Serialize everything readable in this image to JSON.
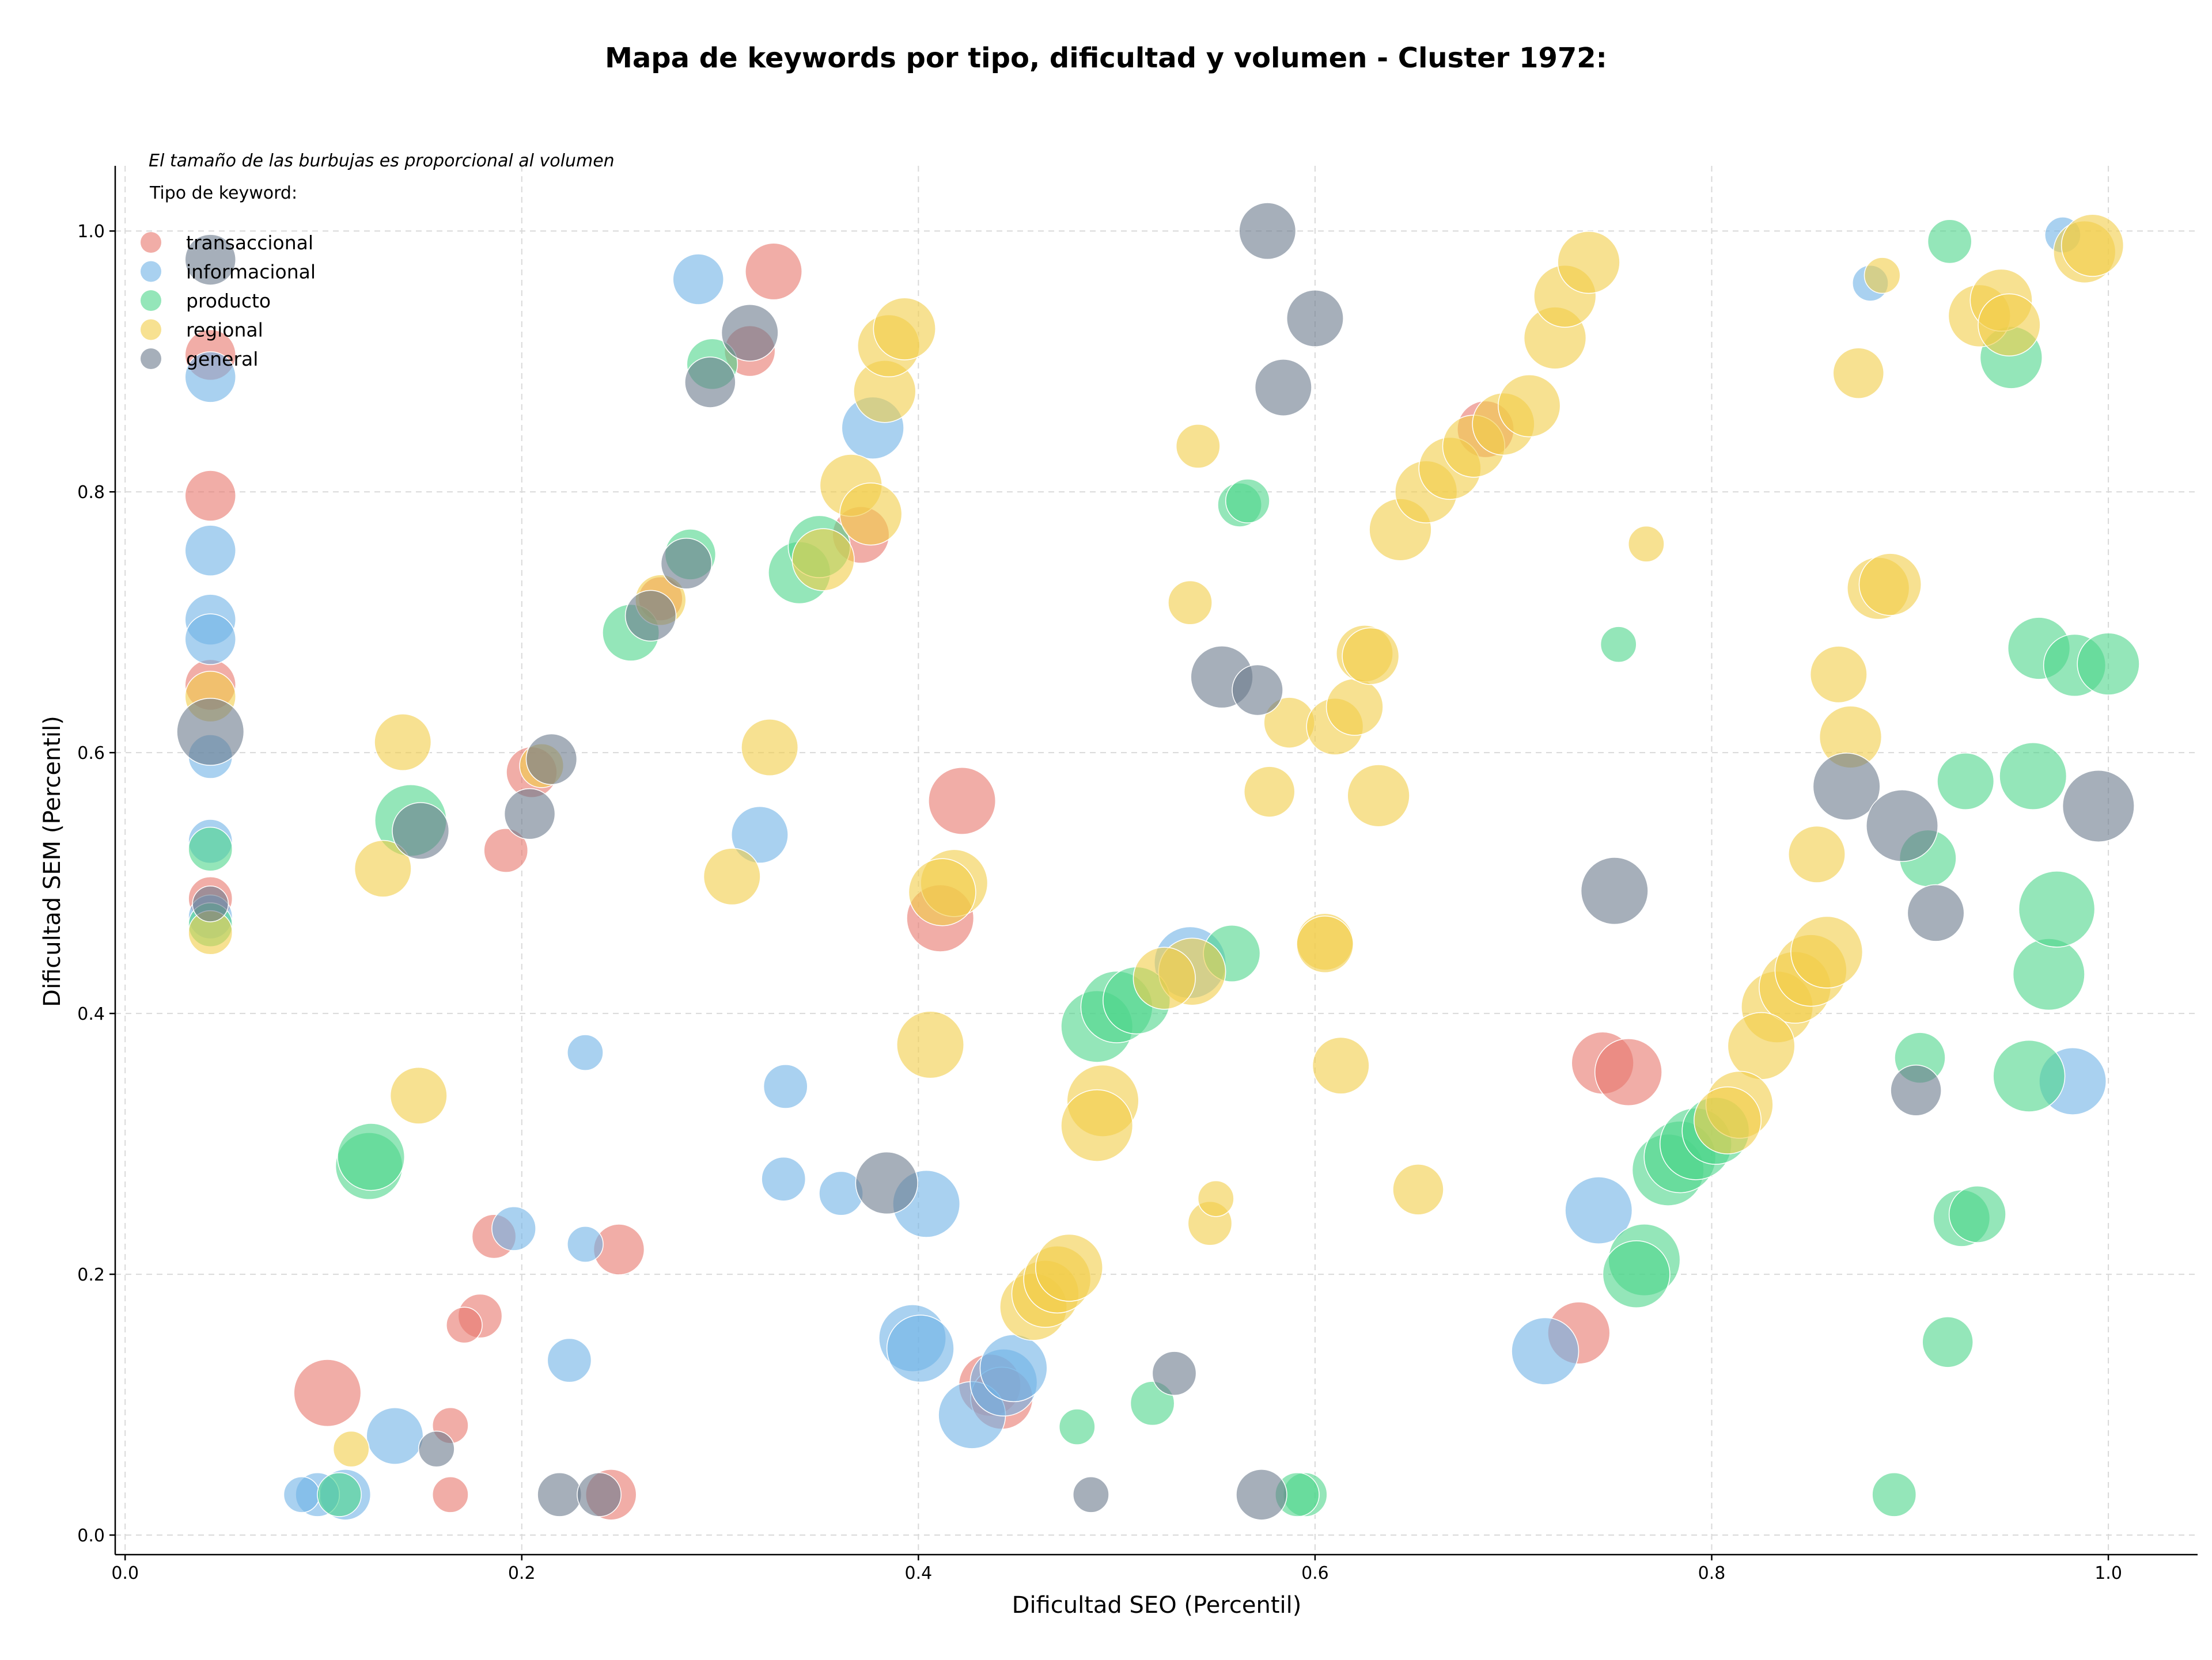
{
  "chart_data": {
    "type": "scatter",
    "title": "Mapa de keywords por tipo, dificultad y volumen - Cluster 1972:",
    "xlabel": "Dificultad SEO (Percentil)",
    "ylabel": "Dificultad SEM (Percentil)",
    "xlim": [
      -0.005,
      1.045
    ],
    "ylim": [
      -0.015,
      1.05
    ],
    "xticks": [
      "0.0",
      "0.2",
      "0.4",
      "0.6",
      "0.8",
      "1.0"
    ],
    "yticks": [
      "0.0",
      "0.2",
      "0.4",
      "0.6",
      "0.8",
      "1.0"
    ],
    "grid": true,
    "size_note": "El tamaño de las burbujas es proporcional al volumen",
    "legend_title": "Tipo de keyword:",
    "legend_position": "top-left",
    "colors": {
      "transaccional": "#e8766d",
      "informacional": "#6fb3e6",
      "producto": "#4cd68a",
      "regional": "#f2cd48",
      "general": "#6b7a8c"
    },
    "series": [
      {
        "name": "transaccional",
        "points": [
          [
            0.043,
            0.905,
            4
          ],
          [
            0.043,
            0.797,
            4
          ],
          [
            0.043,
            0.652,
            4
          ],
          [
            0.043,
            0.488,
            3
          ],
          [
            0.315,
            0.908,
            4
          ],
          [
            0.327,
            0.969,
            5
          ],
          [
            0.205,
            0.585,
            4
          ],
          [
            0.192,
            0.525,
            3
          ],
          [
            0.422,
            0.563,
            7
          ],
          [
            0.411,
            0.473,
            7
          ],
          [
            0.102,
            0.109,
            7
          ],
          [
            0.186,
            0.229,
            3
          ],
          [
            0.179,
            0.168,
            3
          ],
          [
            0.171,
            0.161,
            2
          ],
          [
            0.164,
            0.084,
            2
          ],
          [
            0.164,
            0.031,
            2
          ],
          [
            0.249,
            0.219,
            4
          ],
          [
            0.245,
            0.031,
            4
          ],
          [
            0.436,
            0.115,
            6
          ],
          [
            0.442,
            0.105,
            6
          ],
          [
            0.745,
            0.362,
            6
          ],
          [
            0.758,
            0.355,
            7
          ],
          [
            0.733,
            0.155,
            6
          ],
          [
            0.371,
            0.767,
            5
          ],
          [
            0.27,
            0.718,
            3
          ],
          [
            0.686,
            0.848,
            5
          ]
        ]
      },
      {
        "name": "informacional",
        "points": [
          [
            0.043,
            0.888,
            4
          ],
          [
            0.043,
            0.755,
            4
          ],
          [
            0.043,
            0.702,
            4
          ],
          [
            0.043,
            0.687,
            4
          ],
          [
            0.043,
            0.597,
            3
          ],
          [
            0.043,
            0.532,
            3
          ],
          [
            0.043,
            0.474,
            3
          ],
          [
            0.289,
            0.963,
            4
          ],
          [
            0.377,
            0.849,
            6
          ],
          [
            0.32,
            0.537,
            5
          ],
          [
            0.232,
            0.37,
            2
          ],
          [
            0.333,
            0.344,
            3
          ],
          [
            0.332,
            0.273,
            3
          ],
          [
            0.361,
            0.262,
            3
          ],
          [
            0.404,
            0.254,
            7
          ],
          [
            0.196,
            0.235,
            3
          ],
          [
            0.232,
            0.223,
            2
          ],
          [
            0.224,
            0.134,
            3
          ],
          [
            0.136,
            0.076,
            5
          ],
          [
            0.111,
            0.031,
            4
          ],
          [
            0.097,
            0.031,
            3
          ],
          [
            0.089,
            0.031,
            2
          ],
          [
            0.397,
            0.151,
            7
          ],
          [
            0.401,
            0.143,
            7
          ],
          [
            0.427,
            0.092,
            7
          ],
          [
            0.443,
            0.117,
            7
          ],
          [
            0.448,
            0.128,
            7
          ],
          [
            0.537,
            0.439,
            8
          ],
          [
            0.743,
            0.249,
            7
          ],
          [
            0.716,
            0.141,
            7
          ],
          [
            0.88,
            0.96,
            2
          ],
          [
            0.977,
            0.997,
            2
          ],
          [
            0.982,
            0.348,
            7
          ]
        ]
      },
      {
        "name": "producto",
        "points": [
          [
            0.043,
            0.526,
            3
          ],
          [
            0.043,
            0.468,
            3
          ],
          [
            0.285,
            0.752,
            4
          ],
          [
            0.296,
            0.898,
            4
          ],
          [
            0.34,
            0.738,
            6
          ],
          [
            0.35,
            0.758,
            6
          ],
          [
            0.255,
            0.692,
            5
          ],
          [
            0.144,
            0.548,
            8
          ],
          [
            0.123,
            0.283,
            7
          ],
          [
            0.124,
            0.29,
            7
          ],
          [
            0.108,
            0.031,
            3
          ],
          [
            0.49,
            0.39,
            8
          ],
          [
            0.5,
            0.405,
            8
          ],
          [
            0.51,
            0.41,
            7
          ],
          [
            0.558,
            0.446,
            5
          ],
          [
            0.562,
            0.79,
            3
          ],
          [
            0.566,
            0.793,
            3
          ],
          [
            0.518,
            0.101,
            3
          ],
          [
            0.48,
            0.083,
            2
          ],
          [
            0.595,
            0.031,
            3
          ],
          [
            0.591,
            0.031,
            3
          ],
          [
            0.753,
            0.683,
            2
          ],
          [
            0.766,
            0.211,
            8
          ],
          [
            0.762,
            0.2,
            7
          ],
          [
            0.778,
            0.28,
            8
          ],
          [
            0.784,
            0.29,
            8
          ],
          [
            0.792,
            0.3,
            8
          ],
          [
            0.802,
            0.31,
            7
          ],
          [
            0.892,
            0.031,
            3
          ],
          [
            0.919,
            0.148,
            4
          ],
          [
            0.92,
            0.992,
            3
          ],
          [
            0.951,
            0.903,
            6
          ],
          [
            0.926,
            0.243,
            5
          ],
          [
            0.934,
            0.246,
            5
          ],
          [
            0.905,
            0.366,
            4
          ],
          [
            0.928,
            0.578,
            5
          ],
          [
            0.96,
            0.352,
            8
          ],
          [
            0.97,
            0.43,
            8
          ],
          [
            0.974,
            0.48,
            9
          ],
          [
            0.962,
            0.582,
            7
          ],
          [
            0.965,
            0.68,
            6
          ],
          [
            0.983,
            0.667,
            6
          ],
          [
            1.0,
            0.668,
            6
          ],
          [
            0.909,
            0.519,
            5
          ]
        ]
      },
      {
        "name": "regional",
        "points": [
          [
            0.043,
            0.643,
            4
          ],
          [
            0.043,
            0.462,
            3
          ],
          [
            0.14,
            0.608,
            5
          ],
          [
            0.13,
            0.511,
            5
          ],
          [
            0.148,
            0.337,
            5
          ],
          [
            0.114,
            0.066,
            2
          ],
          [
            0.21,
            0.59,
            3
          ],
          [
            0.325,
            0.604,
            5
          ],
          [
            0.306,
            0.505,
            5
          ],
          [
            0.383,
            0.877,
            6
          ],
          [
            0.385,
            0.912,
            6
          ],
          [
            0.393,
            0.925,
            6
          ],
          [
            0.366,
            0.805,
            6
          ],
          [
            0.376,
            0.783,
            6
          ],
          [
            0.352,
            0.748,
            6
          ],
          [
            0.27,
            0.717,
            4
          ],
          [
            0.418,
            0.5,
            7
          ],
          [
            0.412,
            0.493,
            7
          ],
          [
            0.406,
            0.376,
            7
          ],
          [
            0.458,
            0.175,
            7
          ],
          [
            0.464,
            0.185,
            7
          ],
          [
            0.47,
            0.196,
            7
          ],
          [
            0.476,
            0.205,
            7
          ],
          [
            0.493,
            0.333,
            8
          ],
          [
            0.49,
            0.314,
            8
          ],
          [
            0.538,
            0.432,
            7
          ],
          [
            0.524,
            0.427,
            6
          ],
          [
            0.541,
            0.835,
            3
          ],
          [
            0.537,
            0.715,
            3
          ],
          [
            0.547,
            0.239,
            3
          ],
          [
            0.55,
            0.258,
            2
          ],
          [
            0.577,
            0.57,
            4
          ],
          [
            0.587,
            0.623,
            4
          ],
          [
            0.61,
            0.62,
            5
          ],
          [
            0.62,
            0.635,
            5
          ],
          [
            0.625,
            0.676,
            5
          ],
          [
            0.628,
            0.674,
            5
          ],
          [
            0.632,
            0.567,
            6
          ],
          [
            0.613,
            0.36,
            5
          ],
          [
            0.605,
            0.455,
            5
          ],
          [
            0.605,
            0.453,
            5
          ],
          [
            0.652,
            0.265,
            4
          ],
          [
            0.643,
            0.771,
            6
          ],
          [
            0.656,
            0.8,
            6
          ],
          [
            0.668,
            0.818,
            6
          ],
          [
            0.68,
            0.835,
            6
          ],
          [
            0.695,
            0.852,
            6
          ],
          [
            0.708,
            0.866,
            6
          ],
          [
            0.721,
            0.918,
            6
          ],
          [
            0.726,
            0.95,
            6
          ],
          [
            0.738,
            0.976,
            6
          ],
          [
            0.767,
            0.76,
            2
          ],
          [
            0.833,
            0.405,
            8
          ],
          [
            0.842,
            0.42,
            8
          ],
          [
            0.85,
            0.433,
            8
          ],
          [
            0.858,
            0.447,
            8
          ],
          [
            0.825,
            0.375,
            7
          ],
          [
            0.814,
            0.33,
            7
          ],
          [
            0.808,
            0.318,
            7
          ],
          [
            0.853,
            0.522,
            5
          ],
          [
            0.864,
            0.66,
            5
          ],
          [
            0.87,
            0.612,
            6
          ],
          [
            0.874,
            0.891,
            4
          ],
          [
            0.886,
            0.966,
            2
          ],
          [
            0.884,
            0.726,
            6
          ],
          [
            0.89,
            0.729,
            6
          ],
          [
            0.935,
            0.935,
            6
          ],
          [
            0.946,
            0.947,
            6
          ],
          [
            0.95,
            0.928,
            6
          ],
          [
            0.988,
            0.984,
            6
          ],
          [
            0.992,
            0.989,
            6
          ]
        ]
      },
      {
        "name": "general",
        "points": [
          [
            0.043,
            0.978,
            4
          ],
          [
            0.043,
            0.616,
            7
          ],
          [
            0.043,
            0.484,
            2
          ],
          [
            0.295,
            0.884,
            4
          ],
          [
            0.315,
            0.922,
            5
          ],
          [
            0.283,
            0.745,
            4
          ],
          [
            0.265,
            0.705,
            4
          ],
          [
            0.149,
            0.54,
            5
          ],
          [
            0.204,
            0.553,
            4
          ],
          [
            0.215,
            0.595,
            4
          ],
          [
            0.157,
            0.066,
            2
          ],
          [
            0.219,
            0.031,
            3
          ],
          [
            0.239,
            0.031,
            3
          ],
          [
            0.384,
            0.27,
            6
          ],
          [
            0.487,
            0.031,
            2
          ],
          [
            0.529,
            0.124,
            3
          ],
          [
            0.576,
            1.0,
            5
          ],
          [
            0.6,
            0.933,
            5
          ],
          [
            0.584,
            0.88,
            5
          ],
          [
            0.553,
            0.658,
            6
          ],
          [
            0.571,
            0.648,
            4
          ],
          [
            0.573,
            0.031,
            4
          ],
          [
            0.751,
            0.494,
            7
          ],
          [
            0.868,
            0.574,
            7
          ],
          [
            0.896,
            0.544,
            8
          ],
          [
            0.913,
            0.477,
            5
          ],
          [
            0.903,
            0.341,
            4
          ],
          [
            0.995,
            0.559,
            8
          ]
        ]
      }
    ]
  }
}
